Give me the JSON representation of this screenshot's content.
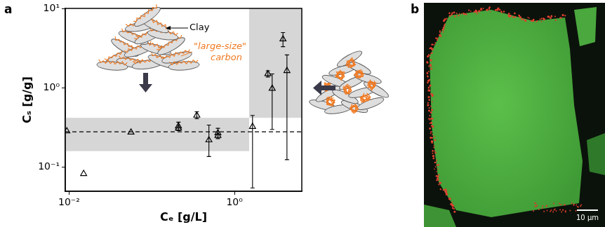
{
  "chart_data": {
    "type": "scatter",
    "label": "a",
    "x_label": "Cₑ [g/L]",
    "y_label": "Cₛ [g/g]",
    "log": true,
    "grid": false,
    "xlim": [
      0.009,
      6.5
    ],
    "ylim": [
      0.05,
      10
    ],
    "xticks": [
      {
        "value": 0.01,
        "label": "10⁻²"
      },
      {
        "value": 1,
        "label": "10⁰"
      }
    ],
    "yticks": [
      {
        "value": 0.1,
        "label": "10⁻¹"
      },
      {
        "value": 1,
        "label": "10⁰"
      },
      {
        "value": 10,
        "label": "10¹"
      }
    ],
    "marker": "triangle",
    "color": "#000000",
    "x": [
      0.0094,
      0.015,
      0.056,
      0.21,
      0.21,
      0.35,
      0.49,
      0.63,
      0.63,
      1.65,
      2.53,
      2.85,
      3.85,
      4.3
    ],
    "values": [
      0.285,
      0.083,
      0.276,
      0.33,
      0.31,
      0.45,
      0.22,
      0.27,
      0.25,
      0.325,
      1.5,
      0.98,
      4.1,
      1.64
    ],
    "y_low": [
      null,
      null,
      null,
      0.29,
      null,
      0.41,
      0.137,
      0.23,
      null,
      0.055,
      1.37,
      0.3,
      3.3,
      0.125
    ],
    "y_high": [
      null,
      null,
      null,
      0.37,
      null,
      0.5,
      0.34,
      0.31,
      null,
      0.45,
      1.64,
      1.5,
      4.96,
      2.6
    ],
    "reference_lines": [
      {
        "y": 0.28,
        "line_style": "dashed"
      }
    ],
    "shaded_regions": [
      {
        "x": [
          0.009,
          1.5
        ],
        "y": [
          0.16,
          0.42
        ]
      },
      {
        "x": [
          1.5,
          6.5
        ],
        "y": [
          0.42,
          10
        ]
      }
    ],
    "annotations": [
      {
        "text": "Clay"
      },
      {
        "text": "\"large-size\"\ncarbon"
      }
    ]
  },
  "image": {
    "label": "b",
    "scale_bar": "10 μm"
  }
}
